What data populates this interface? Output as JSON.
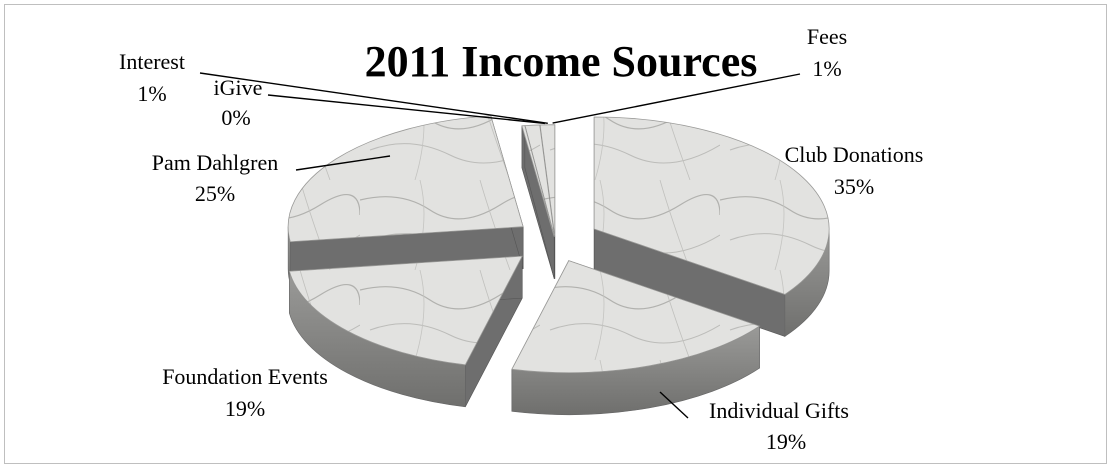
{
  "chart_data": {
    "type": "pie",
    "title": "2011 Income Sources",
    "style": "3d-exploded",
    "legend": "none",
    "slices": [
      {
        "name": "Club Donations",
        "label": "35%",
        "value": 35
      },
      {
        "name": "Individual  Gifts",
        "label": "19%",
        "value": 19
      },
      {
        "name": "Foundation Events",
        "label": "19%",
        "value": 19
      },
      {
        "name": "Pam Dahlgren",
        "label": "25%",
        "value": 25
      },
      {
        "name": "iGive",
        "label": "0%",
        "value": 0.2
      },
      {
        "name": "Interest",
        "label": "1%",
        "value": 1
      },
      {
        "name": "Fees",
        "label": "1%",
        "value": 1
      }
    ],
    "colors": {
      "top": "#e3e3e1",
      "side": "#888888",
      "cut": "#6e6e6e",
      "vein": "#a9a9a6"
    }
  }
}
